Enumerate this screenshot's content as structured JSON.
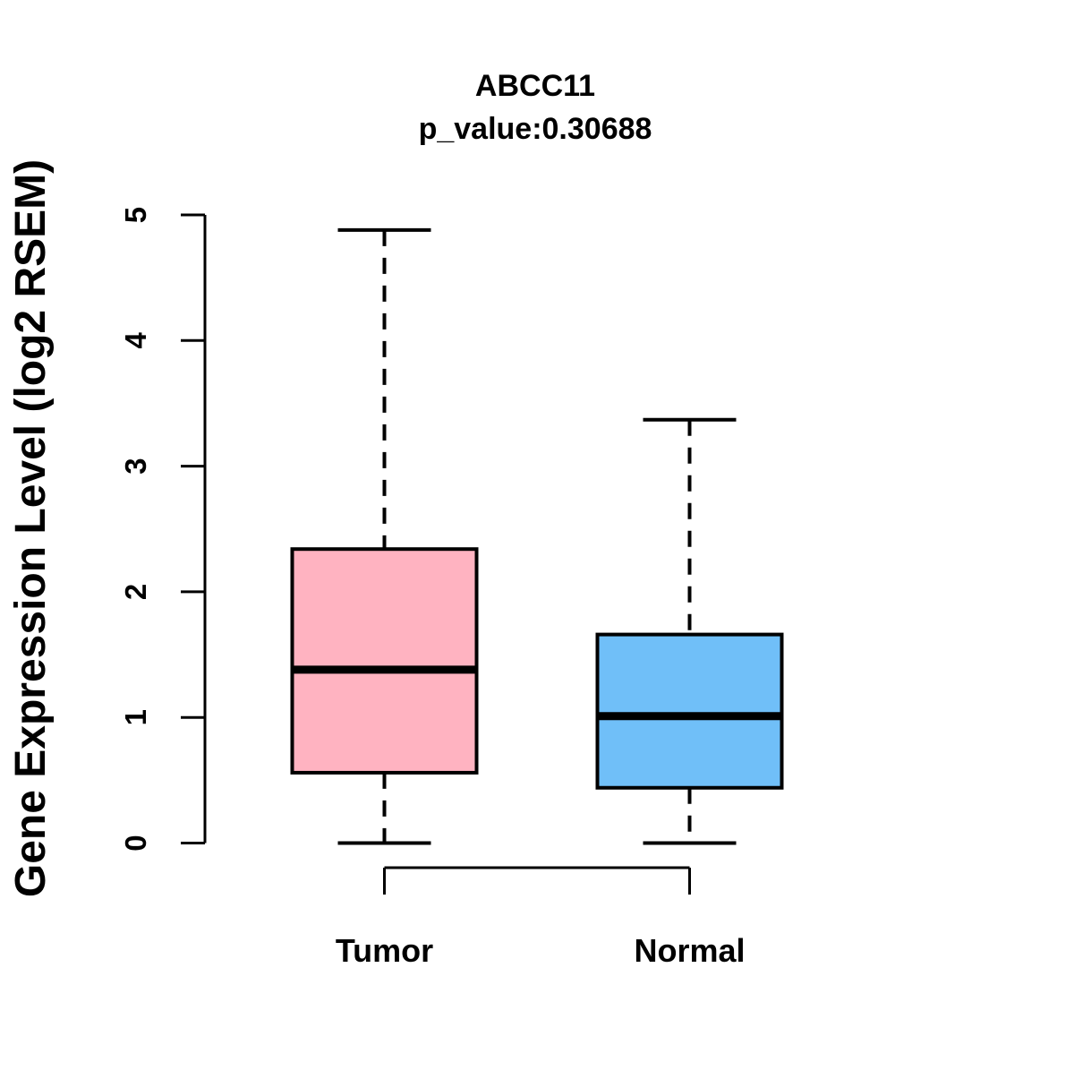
{
  "chart_data": {
    "type": "boxplot",
    "title": "ABCC11",
    "subtitle": "p_value:0.30688",
    "ylabel": "Gene Expression Level (log2 RSEM)",
    "xlabel": "",
    "ylim": [
      0,
      5
    ],
    "yticks": [
      "0",
      "1",
      "2",
      "3",
      "4",
      "5"
    ],
    "categories": [
      "Tumor",
      "Normal"
    ],
    "grid": false,
    "legend": "none",
    "series": [
      {
        "name": "Tumor",
        "fill_color": "#FFB3C1",
        "whisker_low": 0.0,
        "q1": 0.56,
        "median": 1.38,
        "q3": 2.34,
        "whisker_high": 4.88
      },
      {
        "name": "Normal",
        "fill_color": "#70BFF8",
        "whisker_low": 0.0,
        "q1": 0.44,
        "median": 1.01,
        "q3": 1.66,
        "whisker_high": 3.37
      }
    ],
    "colors": {
      "stroke": "#000000",
      "tumor_fill": "#FFB3C1",
      "normal_fill": "#70BFF8",
      "background": "#FFFFFF"
    }
  }
}
